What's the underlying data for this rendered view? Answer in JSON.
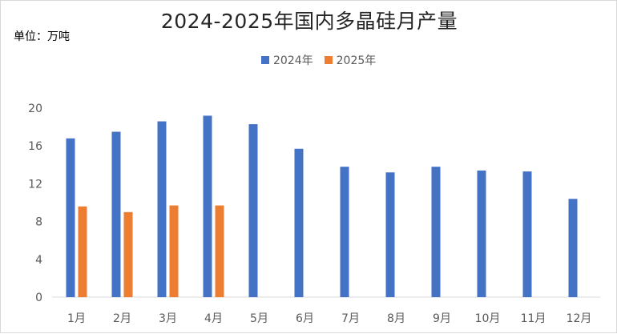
{
  "title": "2024-2025年国内多晶硅月产量",
  "unit_label": "单位：万吨",
  "chart_data": {
    "type": "bar",
    "title": "2024-2025年国内多晶硅月产量",
    "xlabel": "",
    "ylabel": "单位：万吨",
    "categories": [
      "1月",
      "2月",
      "3月",
      "4月",
      "5月",
      "6月",
      "7月",
      "8月",
      "9月",
      "10月",
      "11月",
      "12月"
    ],
    "series": [
      {
        "name": "2024年",
        "color": "#4472C4",
        "values": [
          16.8,
          17.5,
          18.6,
          19.2,
          18.3,
          15.7,
          13.8,
          13.2,
          13.8,
          13.4,
          13.3,
          10.4
        ]
      },
      {
        "name": "2025年",
        "color": "#ED7D31",
        "values": [
          9.6,
          9.0,
          9.7,
          9.7,
          null,
          null,
          null,
          null,
          null,
          null,
          null,
          null
        ]
      }
    ],
    "ylim": [
      0,
      20
    ],
    "yticks": [
      0,
      4,
      8,
      12,
      16,
      20
    ],
    "grid": false,
    "legend_position": "top"
  }
}
